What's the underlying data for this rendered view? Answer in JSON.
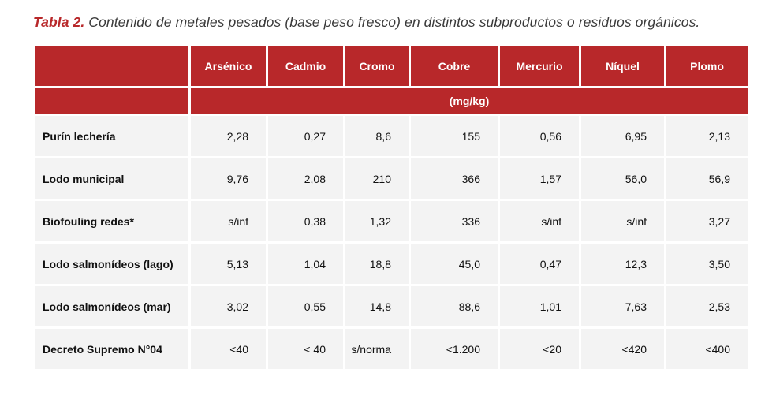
{
  "caption": {
    "label": "Tabla 2.",
    "text": " Contenido de metales pesados (base peso fresco) en distintos subproductos o residuos orgánicos."
  },
  "colors": {
    "header_bg": "#b8282a",
    "row_bg": "#f3f3f3"
  },
  "table": {
    "headers": [
      "Arsénico",
      "Cadmio",
      "Cromo",
      "Cobre",
      "Mercurio",
      "Níquel",
      "Plomo"
    ],
    "unit": "(mg/kg)",
    "rows": [
      {
        "label": "Purín lechería",
        "values": [
          "2,28",
          "0,27",
          "8,6",
          "155",
          "0,56",
          "6,95",
          "2,13"
        ]
      },
      {
        "label": "Lodo municipal",
        "values": [
          "9,76",
          "2,08",
          "210",
          "366",
          "1,57",
          "56,0",
          "56,9"
        ]
      },
      {
        "label": "Biofouling redes*",
        "values": [
          "s/inf",
          "0,38",
          "1,32",
          "336",
          "s/inf",
          "s/inf",
          "3,27"
        ]
      },
      {
        "label": "Lodo salmonídeos (lago)",
        "values": [
          "5,13",
          "1,04",
          "18,8",
          "45,0",
          "0,47",
          "12,3",
          "3,50"
        ]
      },
      {
        "label": "Lodo salmonídeos (mar)",
        "values": [
          "3,02",
          "0,55",
          "14,8",
          "88,6",
          "1,01",
          "7,63",
          "2,53"
        ]
      },
      {
        "label": "Decreto Supremo N°04",
        "values": [
          "<40",
          "< 40",
          "s/norma",
          "<1.200",
          "<20",
          "<420",
          "<400"
        ]
      }
    ]
  }
}
